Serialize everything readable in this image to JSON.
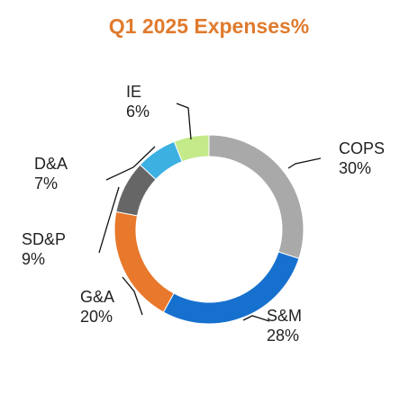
{
  "chart_data": {
    "type": "pie",
    "title": "Q1 2025 Expenses%",
    "title_color": "#E07B2E",
    "donut": true,
    "slices": [
      {
        "label": "COPS",
        "value": 30,
        "display": "30%",
        "color": "#A9A9A9"
      },
      {
        "label": "S&M",
        "value": 28,
        "display": "28%",
        "color": "#1670CE"
      },
      {
        "label": "G&A",
        "value": 20,
        "display": "20%",
        "color": "#E8782B"
      },
      {
        "label": "SD&P",
        "value": 9,
        "display": "9%",
        "color": "#666666"
      },
      {
        "label": "D&A",
        "value": 7,
        "display": "7%",
        "color": "#3DB0E2"
      },
      {
        "label": "IE",
        "value": 6,
        "display": "6%",
        "color": "#C4EA8A"
      }
    ]
  }
}
